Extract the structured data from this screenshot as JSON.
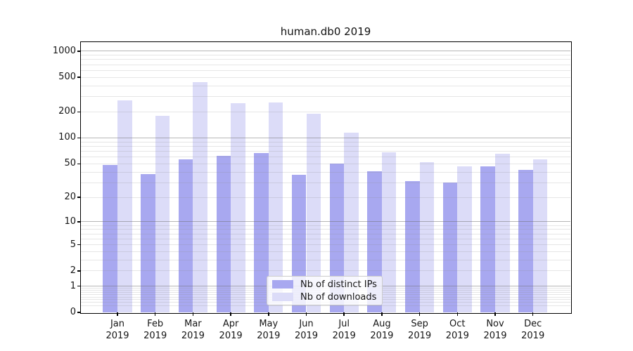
{
  "title": "human.db0 2019",
  "chart_data": {
    "type": "bar",
    "title": "human.db0 2019",
    "categories": [
      "Jan",
      "Feb",
      "Mar",
      "Apr",
      "May",
      "Jun",
      "Jul",
      "Aug",
      "Sep",
      "Oct",
      "Nov",
      "Dec"
    ],
    "category_year": "2019",
    "series": [
      {
        "name": "Nb of distinct IPs",
        "color": "#a8a8f0",
        "values": [
          48,
          38,
          56,
          62,
          67,
          37,
          50,
          41,
          31,
          30,
          47,
          42
        ]
      },
      {
        "name": "Nb of downloads",
        "color": "#dcdcf8",
        "values": [
          270,
          180,
          440,
          250,
          255,
          190,
          115,
          68,
          52,
          47,
          65,
          56
        ]
      }
    ],
    "y_scale": "log1p",
    "y_ticks": [
      "0",
      "1",
      "2",
      "5",
      "10",
      "20",
      "50",
      "100",
      "200",
      "500",
      "1000"
    ],
    "y_tick_values": [
      0,
      1,
      2,
      5,
      10,
      20,
      50,
      100,
      200,
      500,
      1000
    ],
    "y_major_grid": [
      1,
      10,
      100,
      1000
    ],
    "ylim": [
      0,
      1272
    ],
    "grid": true,
    "legend_position": "lower center",
    "legend_items": [
      "Nb of distinct IPs",
      "Nb of downloads"
    ]
  },
  "colors": {
    "bar_ips": "#a8a8f0",
    "bar_downloads": "#dcdcf8",
    "spine": "#000000",
    "text": "#151515",
    "legend_border": "#cccccc"
  }
}
